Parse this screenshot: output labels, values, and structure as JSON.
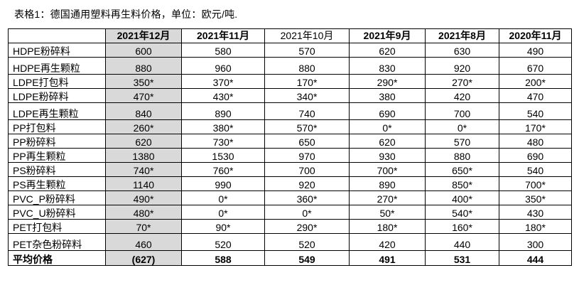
{
  "caption": "表格1：德国通用塑料再生料价格，单位：欧元/吨.",
  "table": {
    "headers": [
      "",
      "2021年12月",
      "2021年11月",
      "2021年10月",
      "2021年9月",
      "2021年8月",
      "2020年11月"
    ],
    "rows": [
      {
        "name": "HDPE粉碎料",
        "values": [
          "600",
          "580",
          "570",
          "620",
          "630",
          "490"
        ],
        "tall": false
      },
      {
        "name": "HDPE再生颗粒",
        "values": [
          "880",
          "960",
          "880",
          "830",
          "920",
          "670"
        ],
        "tall": true
      },
      {
        "name": "LDPE打包料",
        "values": [
          "350*",
          "370*",
          "170*",
          "290*",
          "270*",
          "200*"
        ],
        "tall": false
      },
      {
        "name": "LDPE粉碎料",
        "values": [
          "470*",
          "430*",
          "340*",
          "380",
          "420",
          "470"
        ],
        "tall": false
      },
      {
        "name": "LDPE再生颗粒",
        "values": [
          "840",
          "890",
          "740",
          "690",
          "700",
          "540"
        ],
        "tall": true
      },
      {
        "name": "PP打包料",
        "values": [
          "260*",
          "380*",
          "570*",
          "0*",
          "0*",
          "170*"
        ],
        "tall": false
      },
      {
        "name": "PP粉碎料",
        "values": [
          "620",
          "730*",
          "650",
          "620",
          "570",
          "480"
        ],
        "tall": false
      },
      {
        "name": "PP再生颗粒",
        "values": [
          "1380",
          "1530",
          "970",
          "930",
          "880",
          "690"
        ],
        "tall": false
      },
      {
        "name": "PS粉碎料",
        "values": [
          "740*",
          "760*",
          "700",
          "700*",
          "650*",
          "540"
        ],
        "tall": false
      },
      {
        "name": "PS再生颗粒",
        "values": [
          "1140",
          "990",
          "920",
          "890",
          "850*",
          "700*"
        ],
        "tall": false
      },
      {
        "name": "PVC_P粉碎料",
        "values": [
          "490*",
          "0*",
          "360*",
          "270*",
          "400*",
          "350*"
        ],
        "tall": false
      },
      {
        "name": "PVC_U粉碎料",
        "values": [
          "480*",
          "0*",
          "0*",
          "50*",
          "540*",
          "430"
        ],
        "tall": false
      },
      {
        "name": "PET打包料",
        "values": [
          "70*",
          "90*",
          "290*",
          "180*",
          "160*",
          "180*"
        ],
        "tall": false
      },
      {
        "name": "PET杂色粉碎料",
        "values": [
          "460",
          "520",
          "520",
          "420",
          "440",
          "300"
        ],
        "tall": true
      }
    ],
    "average": {
      "name": "平均价格",
      "values": [
        "(627)",
        "588",
        "549",
        "491",
        "531",
        "444"
      ]
    }
  },
  "colors": {
    "highlight": "#d9d9d9",
    "border": "#000000"
  }
}
